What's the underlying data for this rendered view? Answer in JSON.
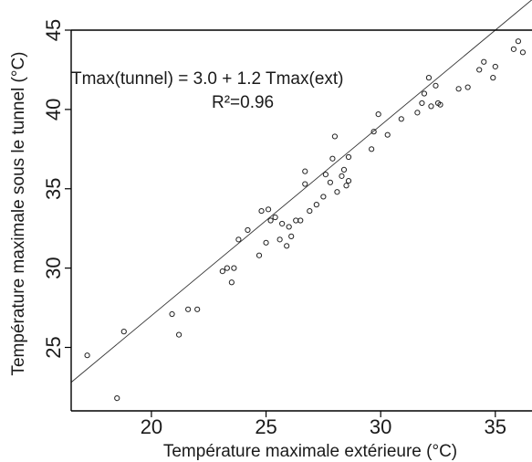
{
  "chart_data": {
    "type": "scatter",
    "xlabel": "Température maximale extérieure (°C)",
    "ylabel": "Température maximale sous le tunnel (°C)",
    "xlim": [
      16.5,
      36.6
    ],
    "ylim": [
      21.0,
      45.0
    ],
    "x_ticks": [
      20,
      25,
      30,
      35
    ],
    "y_ticks": [
      25,
      30,
      35,
      40,
      45
    ],
    "grid": false,
    "annotations": {
      "equation": "Tmax(tunnel) = 3.0 + 1.2  Tmax(ext)",
      "r2": "R²=0.96"
    },
    "regression": {
      "intercept": 3.0,
      "slope": 1.2
    },
    "points": [
      [
        17.2,
        24.5
      ],
      [
        18.5,
        21.8
      ],
      [
        18.8,
        26.0
      ],
      [
        20.9,
        27.1
      ],
      [
        21.2,
        25.8
      ],
      [
        21.6,
        27.4
      ],
      [
        22.0,
        27.4
      ],
      [
        23.1,
        29.8
      ],
      [
        23.3,
        30.0
      ],
      [
        23.5,
        29.1
      ],
      [
        23.6,
        30.0
      ],
      [
        23.8,
        31.8
      ],
      [
        24.2,
        32.4
      ],
      [
        24.7,
        30.8
      ],
      [
        24.8,
        33.6
      ],
      [
        25.0,
        31.6
      ],
      [
        25.1,
        33.7
      ],
      [
        25.2,
        33.0
      ],
      [
        25.4,
        33.2
      ],
      [
        25.6,
        31.8
      ],
      [
        25.7,
        32.8
      ],
      [
        25.9,
        31.4
      ],
      [
        26.0,
        32.6
      ],
      [
        26.1,
        32.0
      ],
      [
        26.3,
        33.0
      ],
      [
        26.5,
        33.0
      ],
      [
        26.7,
        36.1
      ],
      [
        26.7,
        35.3
      ],
      [
        26.9,
        33.6
      ],
      [
        27.2,
        34.0
      ],
      [
        27.5,
        34.5
      ],
      [
        27.6,
        35.9
      ],
      [
        27.8,
        35.4
      ],
      [
        27.9,
        36.9
      ],
      [
        28.0,
        38.3
      ],
      [
        28.1,
        34.8
      ],
      [
        28.3,
        35.8
      ],
      [
        28.4,
        36.2
      ],
      [
        28.5,
        35.2
      ],
      [
        28.6,
        37.0
      ],
      [
        28.6,
        35.5
      ],
      [
        29.6,
        37.5
      ],
      [
        29.7,
        38.6
      ],
      [
        29.9,
        39.7
      ],
      [
        30.3,
        38.4
      ],
      [
        30.9,
        39.4
      ],
      [
        31.6,
        39.8
      ],
      [
        31.8,
        40.4
      ],
      [
        31.9,
        41.0
      ],
      [
        32.1,
        42.0
      ],
      [
        32.2,
        40.2
      ],
      [
        32.4,
        41.5
      ],
      [
        32.5,
        40.4
      ],
      [
        32.6,
        40.3
      ],
      [
        33.4,
        41.3
      ],
      [
        33.8,
        41.4
      ],
      [
        34.3,
        42.5
      ],
      [
        34.5,
        43.0
      ],
      [
        34.9,
        42.0
      ],
      [
        35.0,
        42.7
      ],
      [
        35.8,
        43.8
      ],
      [
        36.0,
        44.3
      ],
      [
        36.2,
        43.6
      ]
    ]
  }
}
